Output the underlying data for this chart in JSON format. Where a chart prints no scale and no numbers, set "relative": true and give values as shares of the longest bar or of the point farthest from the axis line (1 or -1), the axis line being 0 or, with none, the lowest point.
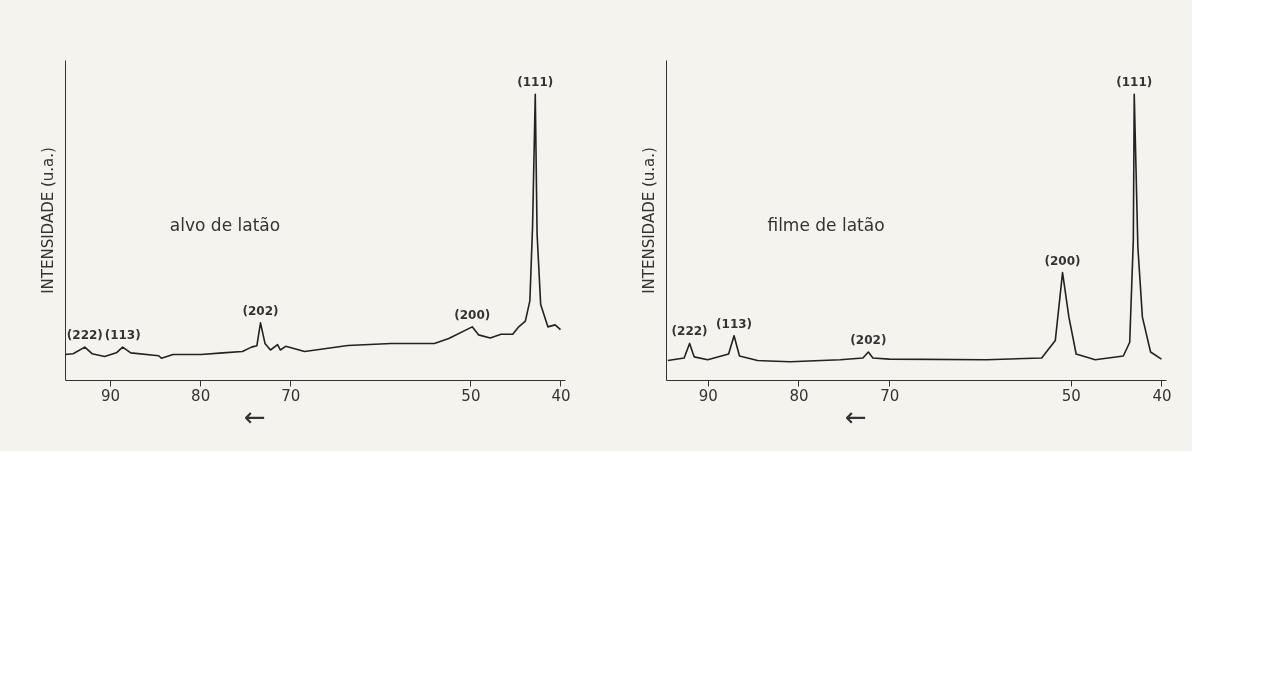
{
  "chart_data": [
    {
      "type": "line",
      "relative": true,
      "ylabel": "INTENSIDADE (u.a.)",
      "xlim": [
        95,
        39.5
      ],
      "xticks": [
        90,
        80,
        70,
        50,
        40
      ],
      "grid": false,
      "marker": "none",
      "line_style": "solid",
      "annotations": [
        "alvo de latão",
        "←",
        {
          "text": "(222)",
          "x": 92.8,
          "y": 0.115
        },
        {
          "text": "(113)",
          "x": 88.6,
          "y": 0.115
        },
        {
          "text": "(202)",
          "x": 73.3,
          "y": 0.2
        },
        {
          "text": "(200)",
          "x": 49.8,
          "y": 0.186
        },
        {
          "text": "(111)",
          "x": 42.8,
          "y": 1.0
        }
      ],
      "series": [
        {
          "color": "#222222",
          "x": [
            95.0,
            94.1,
            92.8,
            92.0,
            90.6,
            89.3,
            88.6,
            87.7,
            84.6,
            84.3,
            83.0,
            79.9,
            77.5,
            75.3,
            74.3,
            73.7,
            73.3,
            72.8,
            72.2,
            71.4,
            71.1,
            70.5,
            68.4,
            63.6,
            58.8,
            54.0,
            52.4,
            49.8,
            49.1,
            47.8,
            46.6,
            45.3,
            44.7,
            43.9,
            43.4,
            43.1,
            42.8,
            42.6,
            42.2,
            41.4,
            40.6,
            40.0
          ],
          "values": [
            0.089,
            0.092,
            0.115,
            0.092,
            0.082,
            0.095,
            0.115,
            0.095,
            0.085,
            0.076,
            0.089,
            0.089,
            0.095,
            0.1,
            0.115,
            0.12,
            0.2,
            0.128,
            0.105,
            0.124,
            0.105,
            0.118,
            0.1,
            0.121,
            0.128,
            0.128,
            0.145,
            0.186,
            0.158,
            0.147,
            0.16,
            0.16,
            0.184,
            0.206,
            0.277,
            0.538,
            1.0,
            0.512,
            0.264,
            0.186,
            0.193,
            0.176
          ]
        }
      ]
    },
    {
      "type": "line",
      "relative": true,
      "ylabel": "INTENSIDADE (u.a.)",
      "xlim": [
        94.6,
        39.5
      ],
      "xticks": [
        90,
        80,
        70,
        50,
        40
      ],
      "grid": false,
      "marker": "none",
      "line_style": "solid",
      "annotations": [
        "filme de latão",
        "←",
        {
          "text": "(222)",
          "x": 92.0,
          "y": 0.128
        },
        {
          "text": "(113)",
          "x": 87.1,
          "y": 0.155
        },
        {
          "text": "(202)",
          "x": 72.3,
          "y": 0.098
        },
        {
          "text": "(200)",
          "x": 50.9,
          "y": 0.376
        },
        {
          "text": "(111)",
          "x": 43.0,
          "y": 1.0
        }
      ],
      "series": [
        {
          "color": "#222222",
          "x": [
            94.4,
            92.6,
            92.0,
            91.5,
            90.0,
            87.7,
            87.1,
            86.5,
            84.5,
            80.9,
            75.4,
            72.9,
            72.3,
            71.8,
            70.0,
            59.3,
            53.2,
            51.7,
            50.9,
            50.2,
            49.4,
            47.3,
            44.2,
            43.5,
            43.1,
            43.0,
            42.6,
            42.1,
            41.2,
            40.0
          ],
          "values": [
            0.068,
            0.077,
            0.128,
            0.081,
            0.071,
            0.091,
            0.155,
            0.084,
            0.068,
            0.064,
            0.071,
            0.077,
            0.098,
            0.077,
            0.073,
            0.071,
            0.077,
            0.138,
            0.376,
            0.22,
            0.091,
            0.071,
            0.084,
            0.132,
            0.491,
            1.0,
            0.464,
            0.22,
            0.098,
            0.073
          ]
        }
      ]
    }
  ]
}
